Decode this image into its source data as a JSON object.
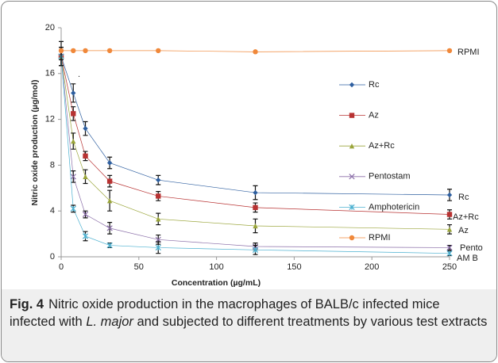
{
  "chart_data": {
    "type": "line",
    "x_label": "Concentration (µg/mL)",
    "y_label": "Nitric oxide production (µg/mol)",
    "x": [
      0,
      7.8,
      15.6,
      31.25,
      62.5,
      125,
      250
    ],
    "xlim": [
      0,
      250
    ],
    "xticks": [
      0,
      50,
      100,
      150,
      200,
      250
    ],
    "ylim": [
      0,
      20
    ],
    "yticks": [
      0,
      4,
      8,
      12,
      16,
      20
    ],
    "grid": false,
    "legend": "upper right",
    "series": [
      {
        "name": "Rc",
        "color": "#2e5fa0",
        "marker": "diamond",
        "values": [
          17.5,
          14.3,
          11.2,
          8.2,
          6.7,
          5.6,
          5.4
        ],
        "errors": [
          0.8,
          0.8,
          0.6,
          0.5,
          0.4,
          0.6,
          0.5
        ]
      },
      {
        "name": "Az",
        "color": "#b83232",
        "marker": "square",
        "values": [
          17.5,
          12.5,
          8.8,
          6.6,
          5.3,
          4.3,
          3.7
        ],
        "errors": [
          0.8,
          0.6,
          0.4,
          0.5,
          0.4,
          0.4,
          0.4
        ]
      },
      {
        "name": "Az+Rc",
        "color": "#9aa53a",
        "marker": "triangle",
        "values": [
          17.5,
          10.1,
          7.0,
          4.9,
          3.3,
          2.7,
          2.4
        ],
        "errors": [
          0.8,
          0.7,
          0.6,
          0.9,
          0.5,
          0.6,
          0.4
        ]
      },
      {
        "name": "Pentostam",
        "color": "#8a6ea8",
        "marker": "x",
        "values": [
          17.5,
          7.0,
          3.7,
          2.5,
          1.5,
          0.9,
          0.8
        ],
        "errors": [
          0.8,
          0.5,
          0.3,
          0.5,
          0.4,
          0.3,
          0.2
        ]
      },
      {
        "name": "Amphotericin",
        "color": "#4ab0d0",
        "marker": "star",
        "values": [
          17.5,
          4.2,
          1.8,
          1.0,
          0.8,
          0.6,
          0.3
        ],
        "errors": [
          0.8,
          0.3,
          0.4,
          0.2,
          0.5,
          0.4,
          0.2
        ]
      },
      {
        "name": "RPMI",
        "color": "#f0883a",
        "marker": "circle",
        "values": [
          18.0,
          18.0,
          18.0,
          18.0,
          18.0,
          17.9,
          18.0
        ],
        "errors": [
          0.8,
          0,
          0,
          0,
          0,
          0,
          0
        ]
      }
    ],
    "annotations": [
      "RPMI",
      "Rc",
      "Az+Rc",
      "Az",
      "Pento",
      "AM B",
      "."
    ]
  },
  "caption": {
    "label": "Fig. 4",
    "text_before": "Nitric oxide production in the macrophages of BALB/c infected mice infected with ",
    "italic": "L. major",
    "text_after": " and subjected to different treatments by various test extracts"
  }
}
